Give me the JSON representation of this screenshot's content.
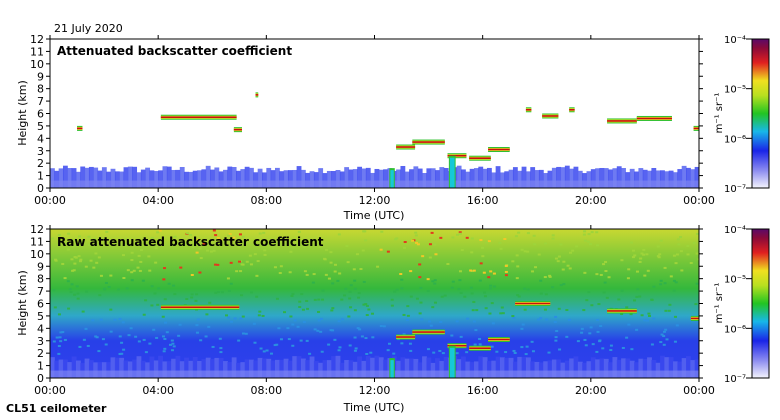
{
  "date": "21 July 2020",
  "instrument": "CL51 ceilometer",
  "colors": {
    "sky_blue_light": "#e8ecfb",
    "blue": "#2335ee",
    "cyan": "#16c8d8",
    "green": "#2fc02f",
    "yellow": "#e8e82a",
    "red": "#e01b1b",
    "dark_red": "#8a0a0a"
  },
  "colorbar": {
    "label": "m⁻¹ sr⁻¹",
    "ticks": [
      {
        "value": 0.0001,
        "label": "10⁻⁴"
      },
      {
        "value": 1e-05,
        "label": "10⁻⁵"
      },
      {
        "value": 1e-06,
        "label": "10⁻⁶"
      },
      {
        "value": 1e-07,
        "label": "10⁻⁷"
      }
    ]
  },
  "chart_data": [
    {
      "type": "heatmap",
      "title": "Attenuated backscatter coefficient",
      "xlabel": "Time (UTC)",
      "ylabel": "Height (km)",
      "xlim": [
        0,
        24
      ],
      "ylim": [
        0,
        12
      ],
      "xticks": [
        {
          "value": 0,
          "label": "00:00"
        },
        {
          "value": 4,
          "label": "04:00"
        },
        {
          "value": 8,
          "label": "08:00"
        },
        {
          "value": 12,
          "label": "12:00"
        },
        {
          "value": 16,
          "label": "16:00"
        },
        {
          "value": 20,
          "label": "20:00"
        },
        {
          "value": 24,
          "label": "00:00"
        }
      ],
      "yticks": [
        0,
        1,
        2,
        3,
        4,
        5,
        6,
        7,
        8,
        9,
        10,
        11,
        12
      ],
      "cloud_layers": [
        {
          "start": 1.0,
          "end": 1.2,
          "height": 4.8
        },
        {
          "start": 4.1,
          "end": 6.9,
          "height": 5.7
        },
        {
          "start": 6.8,
          "end": 7.1,
          "height": 4.7
        },
        {
          "start": 7.6,
          "end": 7.7,
          "height": 7.5
        },
        {
          "start": 12.8,
          "end": 13.5,
          "height": 3.3
        },
        {
          "start": 13.4,
          "end": 14.6,
          "height": 3.7
        },
        {
          "start": 14.7,
          "end": 15.4,
          "height": 2.6
        },
        {
          "start": 15.5,
          "end": 16.3,
          "height": 2.4
        },
        {
          "start": 16.2,
          "end": 17.0,
          "height": 3.1
        },
        {
          "start": 17.6,
          "end": 17.8,
          "height": 6.3
        },
        {
          "start": 18.2,
          "end": 18.8,
          "height": 5.8
        },
        {
          "start": 19.2,
          "end": 19.4,
          "height": 6.3
        },
        {
          "start": 20.6,
          "end": 21.7,
          "height": 5.4
        },
        {
          "start": 21.7,
          "end": 23.0,
          "height": 5.6
        },
        {
          "start": 23.8,
          "end": 24.0,
          "height": 4.8
        }
      ],
      "precipitation": [
        {
          "start": 12.55,
          "end": 12.75,
          "top": 1.6
        },
        {
          "start": 14.75,
          "end": 15.0,
          "top": 2.6
        }
      ]
    },
    {
      "type": "heatmap",
      "title": "Raw attenuated backscatter coefficient",
      "xlabel": "Time (UTC)",
      "ylabel": "Height (km)",
      "xlim": [
        0,
        24
      ],
      "ylim": [
        0,
        12
      ],
      "xticks": [
        {
          "value": 0,
          "label": "00:00"
        },
        {
          "value": 4,
          "label": "04:00"
        },
        {
          "value": 8,
          "label": "08:00"
        },
        {
          "value": 12,
          "label": "12:00"
        },
        {
          "value": 16,
          "label": "16:00"
        },
        {
          "value": 20,
          "label": "20:00"
        },
        {
          "value": 24,
          "label": "00:00"
        }
      ],
      "yticks": [
        0,
        1,
        2,
        3,
        4,
        5,
        6,
        7,
        8,
        9,
        10,
        11,
        12
      ],
      "cloud_layers": [
        {
          "start": 4.1,
          "end": 7.0,
          "height": 5.7
        },
        {
          "start": 12.8,
          "end": 13.5,
          "height": 3.3
        },
        {
          "start": 13.4,
          "end": 14.6,
          "height": 3.7
        },
        {
          "start": 14.7,
          "end": 15.4,
          "height": 2.6
        },
        {
          "start": 15.5,
          "end": 16.3,
          "height": 2.4
        },
        {
          "start": 16.2,
          "end": 17.0,
          "height": 3.1
        },
        {
          "start": 17.2,
          "end": 18.5,
          "height": 6.0
        },
        {
          "start": 20.6,
          "end": 21.7,
          "height": 5.4
        },
        {
          "start": 23.7,
          "end": 24.0,
          "height": 4.8
        }
      ],
      "precipitation": [
        {
          "start": 12.55,
          "end": 12.75,
          "top": 1.6
        },
        {
          "start": 14.75,
          "end": 15.0,
          "top": 2.6
        }
      ]
    }
  ]
}
